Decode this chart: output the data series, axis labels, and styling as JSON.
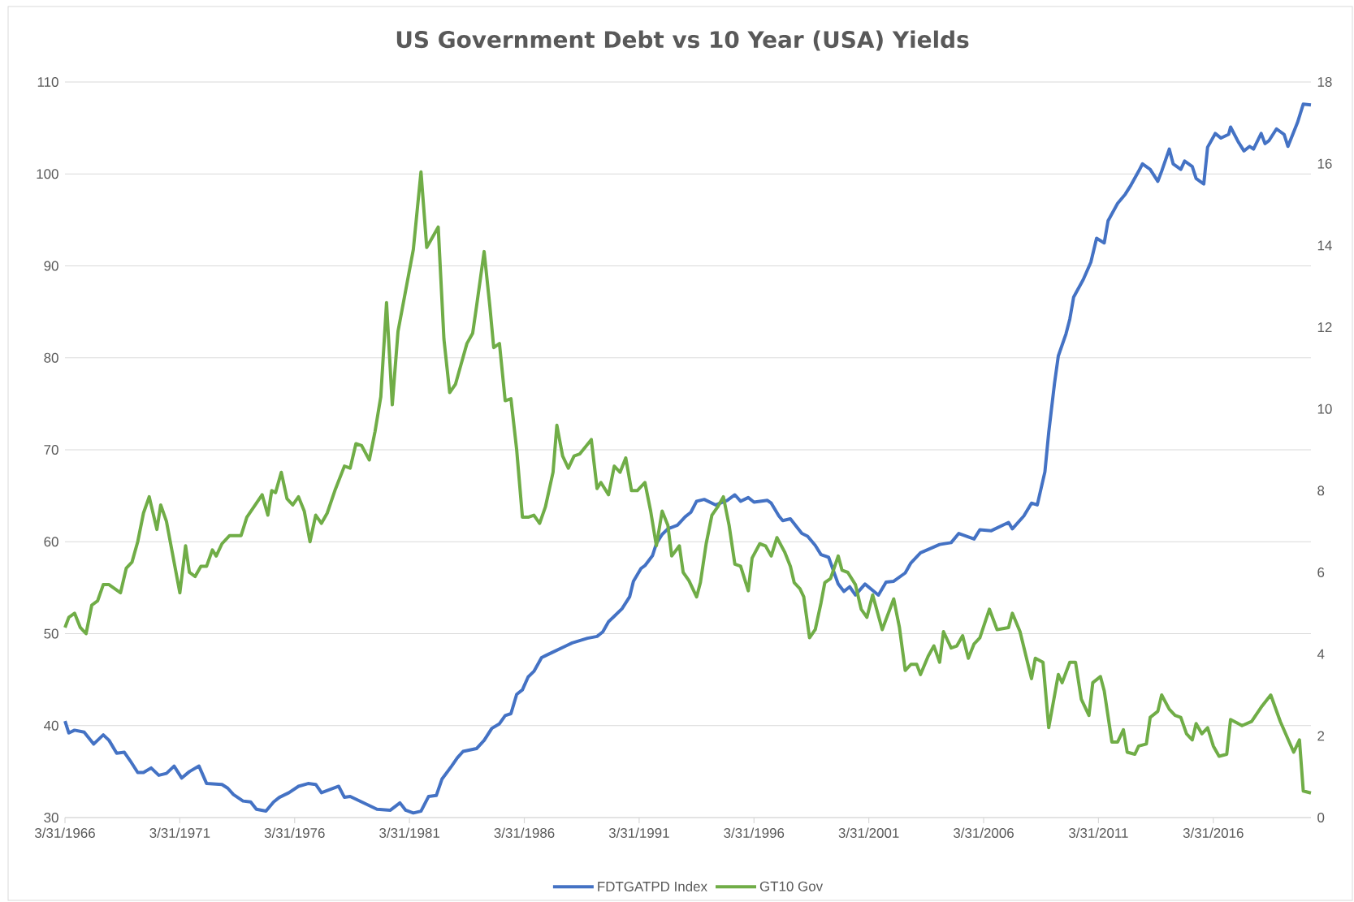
{
  "chart_data": {
    "type": "line",
    "title": "US Government Debt vs 10 Year (USA) Yields",
    "xlim": [
      "1966-03-31",
      "2020-07"
    ],
    "xticks": [
      {
        "value": "1966-03-31",
        "label": "3/31/1966"
      },
      {
        "value": "1971-03-31",
        "label": "3/31/1971"
      },
      {
        "value": "1976-03-31",
        "label": "3/31/1976"
      },
      {
        "value": "1981-03-31",
        "label": "3/31/1981"
      },
      {
        "value": "1986-03-31",
        "label": "3/31/1986"
      },
      {
        "value": "1991-03-31",
        "label": "3/31/1991"
      },
      {
        "value": "1996-03-31",
        "label": "3/31/1996"
      },
      {
        "value": "2001-03-31",
        "label": "3/31/2001"
      },
      {
        "value": "2006-03-31",
        "label": "3/31/2006"
      },
      {
        "value": "2011-03-31",
        "label": "3/31/2011"
      },
      {
        "value": "2016-03-31",
        "label": "3/31/2016"
      }
    ],
    "ylim": [
      30,
      110
    ],
    "yticks": [
      30,
      40,
      50,
      60,
      70,
      80,
      90,
      100,
      110
    ],
    "y2lim": [
      0,
      18
    ],
    "y2ticks": [
      0,
      2,
      4,
      6,
      8,
      10,
      12,
      14,
      16,
      18
    ],
    "grid": "y",
    "legend": "bottom",
    "series": [
      {
        "name": "FDTGATPD Index",
        "color": "#4472c4",
        "axis": "y",
        "x": [
          "1966-04",
          "1966-06",
          "1966-09",
          "1967-02",
          "1967-07",
          "1967-12",
          "1968-03",
          "1968-07",
          "1968-11",
          "1969-02",
          "1969-06",
          "1969-09",
          "1970-01",
          "1970-05",
          "1970-09",
          "1971-01",
          "1971-05",
          "1971-09",
          "1972-02",
          "1972-06",
          "1973-02",
          "1973-05",
          "1973-08",
          "1974-01",
          "1974-05",
          "1974-08",
          "1975-01",
          "1975-05",
          "1975-08",
          "1976-01",
          "1976-06",
          "1976-11",
          "1977-03",
          "1977-06",
          "1978-03",
          "1978-06",
          "1978-09",
          "1979-07",
          "1979-11",
          "1980-06",
          "1980-11",
          "1981-02",
          "1981-06",
          "1981-10",
          "1982-02",
          "1982-06",
          "1982-09",
          "1983-02",
          "1983-05",
          "1983-08",
          "1984-03",
          "1984-07",
          "1984-11",
          "1985-03",
          "1985-06",
          "1985-09",
          "1985-12",
          "1986-03",
          "1986-06",
          "1986-09",
          "1987-01",
          "1987-03",
          "1987-07",
          "1988-02",
          "1988-05",
          "1989-01",
          "1989-06",
          "1989-09",
          "1989-12",
          "1990-03",
          "1990-07",
          "1990-11",
          "1991-01",
          "1991-05",
          "1991-07",
          "1991-11",
          "1992-01",
          "1992-04",
          "1992-07",
          "1992-12",
          "1993-04",
          "1993-07",
          "1993-10",
          "1994-02",
          "1994-08",
          "1995-02",
          "1995-06",
          "1995-09",
          "1996-01",
          "1996-04",
          "1996-11",
          "1997-01",
          "1997-05",
          "1997-07",
          "1997-11",
          "1998-05",
          "1998-08",
          "1998-12",
          "1999-03",
          "1999-07",
          "1999-12",
          "2000-03",
          "2000-06",
          "2000-09",
          "2001-02",
          "2001-09",
          "2002-01",
          "2002-05",
          "2002-11",
          "2003-02",
          "2003-07",
          "2004-05",
          "2004-11",
          "2005-03",
          "2005-11",
          "2006-02",
          "2006-08",
          "2007-05",
          "2007-07",
          "2008-01",
          "2008-05",
          "2008-08",
          "2008-12",
          "2009-02",
          "2009-05",
          "2009-07",
          "2009-11",
          "2010-01",
          "2010-03",
          "2010-08",
          "2010-12",
          "2011-03",
          "2011-07",
          "2011-09",
          "2012-02",
          "2012-06",
          "2012-09",
          "2013-01",
          "2013-03",
          "2013-07",
          "2013-11",
          "2014-01",
          "2014-05",
          "2014-07",
          "2014-11",
          "2015-01",
          "2015-05",
          "2015-07",
          "2015-11",
          "2016-01",
          "2016-05",
          "2016-08",
          "2016-12",
          "2017-01",
          "2017-05",
          "2017-08",
          "2017-11",
          "2018-01",
          "2018-05",
          "2018-07",
          "2018-09",
          "2019-01",
          "2019-05",
          "2019-07",
          "2019-12",
          "2020-03",
          "2020-07"
        ],
        "values": [
          40.5,
          39.2,
          39.5,
          39.3,
          38.0,
          39.0,
          38.4,
          37.0,
          37.1,
          36.2,
          34.9,
          34.9,
          35.4,
          34.6,
          34.8,
          35.6,
          34.3,
          35.0,
          35.6,
          33.7,
          33.6,
          33.2,
          32.5,
          31.8,
          31.7,
          30.9,
          30.7,
          31.7,
          32.2,
          32.7,
          33.4,
          33.7,
          33.6,
          32.7,
          33.4,
          32.2,
          32.3,
          31.3,
          30.9,
          30.8,
          31.6,
          30.8,
          30.5,
          30.7,
          32.3,
          32.4,
          34.2,
          35.6,
          36.5,
          37.2,
          37.5,
          38.4,
          39.7,
          40.2,
          41.1,
          41.3,
          43.4,
          43.9,
          45.3,
          45.9,
          47.4,
          47.6,
          48.0,
          48.7,
          49.0,
          49.5,
          49.7,
          50.2,
          51.3,
          51.9,
          52.7,
          54.0,
          55.7,
          57.1,
          57.4,
          58.5,
          59.8,
          60.8,
          61.4,
          61.8,
          62.7,
          63.2,
          64.4,
          64.6,
          64.0,
          64.5,
          65.1,
          64.4,
          64.8,
          64.3,
          64.5,
          64.2,
          62.8,
          62.3,
          62.5,
          60.9,
          60.6,
          59.6,
          58.6,
          58.3,
          55.4,
          54.6,
          55.1,
          54.2,
          55.4,
          54.2,
          55.6,
          55.7,
          56.6,
          57.7,
          58.8,
          59.7,
          59.9,
          60.9,
          60.3,
          61.3,
          61.2,
          62.1,
          61.4,
          62.8,
          64.2,
          64.0,
          67.6,
          71.9,
          77.2,
          80.2,
          82.6,
          84.2,
          86.6,
          88.5,
          90.4,
          93.0,
          92.5,
          94.9,
          96.8,
          97.8,
          98.8,
          100.3,
          101.1,
          100.5,
          99.2,
          100.3,
          102.7,
          101.1,
          100.5,
          101.4,
          100.8,
          99.5,
          98.9,
          102.9,
          104.4,
          103.9,
          104.3,
          105.1,
          103.5,
          102.5,
          103.0,
          102.7,
          104.4,
          103.3,
          103.6,
          104.9,
          104.3,
          103.0,
          105.6,
          107.6,
          107.5
        ]
      },
      {
        "name": "GT10 Gov",
        "color": "#70ad47",
        "axis": "y2",
        "x": [
          "1966-04",
          "1966-06",
          "1966-09",
          "1966-12",
          "1967-03",
          "1967-06",
          "1967-09",
          "1967-12",
          "1968-03",
          "1968-09",
          "1968-12",
          "1969-03",
          "1969-06",
          "1969-09",
          "1969-12",
          "1970-04",
          "1970-06",
          "1970-09",
          "1970-12",
          "1971-04",
          "1971-07",
          "1971-09",
          "1971-12",
          "1972-03",
          "1972-06",
          "1972-09",
          "1972-11",
          "1973-02",
          "1973-06",
          "1973-12",
          "1974-03",
          "1974-11",
          "1975-02",
          "1975-04",
          "1975-06",
          "1975-09",
          "1975-12",
          "1976-03",
          "1976-06",
          "1976-09",
          "1976-12",
          "1977-03",
          "1977-06",
          "1977-09",
          "1978-01",
          "1978-06",
          "1978-09",
          "1978-12",
          "1979-03",
          "1979-07",
          "1979-10",
          "1980-01",
          "1980-04",
          "1980-07",
          "1980-10",
          "1981-06",
          "1981-10",
          "1982-01",
          "1982-07",
          "1982-10",
          "1983-01",
          "1983-04",
          "1983-07",
          "1983-10",
          "1984-01",
          "1984-03",
          "1984-07",
          "1984-10",
          "1984-12",
          "1985-03",
          "1985-06",
          "1985-09",
          "1985-12",
          "1986-03",
          "1986-06",
          "1986-09",
          "1986-12",
          "1987-03",
          "1987-07",
          "1987-09",
          "1987-12",
          "1988-03",
          "1988-06",
          "1988-09",
          "1989-03",
          "1989-06",
          "1989-08",
          "1989-12",
          "1990-03",
          "1990-06",
          "1990-09",
          "1990-12",
          "1991-03",
          "1991-07",
          "1991-10",
          "1992-01",
          "1992-04",
          "1992-07",
          "1992-09",
          "1993-01",
          "1993-03",
          "1993-06",
          "1993-10",
          "1993-12",
          "1994-03",
          "1994-06",
          "1994-09",
          "1994-12",
          "1995-03",
          "1995-06",
          "1995-09",
          "1996-01",
          "1996-03",
          "1996-07",
          "1996-10",
          "1997-01",
          "1997-04",
          "1997-08",
          "1997-11",
          "1998-01",
          "1998-04",
          "1998-06",
          "1998-09",
          "1998-12",
          "1999-03",
          "1999-05",
          "1999-08",
          "1999-12",
          "2000-02",
          "2000-05",
          "2000-09",
          "2000-12",
          "2001-03",
          "2001-06",
          "2001-11",
          "2002-05",
          "2002-08",
          "2002-11",
          "2003-02",
          "2003-05",
          "2003-07",
          "2003-11",
          "2004-02",
          "2004-05",
          "2004-07",
          "2004-11",
          "2005-02",
          "2005-05",
          "2005-08",
          "2005-11",
          "2006-02",
          "2006-07",
          "2006-11",
          "2007-05",
          "2007-07",
          "2007-11",
          "2008-05",
          "2008-07",
          "2008-11",
          "2009-02",
          "2009-07",
          "2009-09",
          "2010-01",
          "2010-04",
          "2010-07",
          "2010-11",
          "2011-01",
          "2011-05",
          "2011-07",
          "2011-11",
          "2012-02",
          "2012-05",
          "2012-07",
          "2012-11",
          "2013-01",
          "2013-05",
          "2013-07",
          "2013-11",
          "2014-01",
          "2014-05",
          "2014-08",
          "2014-11",
          "2015-02",
          "2015-05",
          "2015-07",
          "2015-10",
          "2016-01",
          "2016-04",
          "2016-07",
          "2016-11",
          "2017-01",
          "2017-07",
          "2017-12",
          "2018-05",
          "2018-10",
          "2019-03",
          "2019-10",
          "2020-01",
          "2020-03",
          "2020-07"
        ],
        "values": [
          4.65,
          4.9,
          5.0,
          4.65,
          4.5,
          5.2,
          5.3,
          5.7,
          5.7,
          5.5,
          6.1,
          6.25,
          6.75,
          7.45,
          7.85,
          7.05,
          7.65,
          7.25,
          6.5,
          5.5,
          6.65,
          6.0,
          5.9,
          6.15,
          6.15,
          6.55,
          6.4,
          6.7,
          6.9,
          6.9,
          7.35,
          7.9,
          7.4,
          8.0,
          7.95,
          8.45,
          7.8,
          7.65,
          7.85,
          7.5,
          6.75,
          7.4,
          7.2,
          7.45,
          8.0,
          8.6,
          8.55,
          9.15,
          9.1,
          8.75,
          9.45,
          10.3,
          12.6,
          10.1,
          11.9,
          13.9,
          15.8,
          13.95,
          14.45,
          11.7,
          10.4,
          10.6,
          11.1,
          11.6,
          11.85,
          12.5,
          13.85,
          12.5,
          11.5,
          11.6,
          10.2,
          10.25,
          9.0,
          7.35,
          7.35,
          7.4,
          7.2,
          7.6,
          8.45,
          9.6,
          8.85,
          8.55,
          8.85,
          8.9,
          9.25,
          8.05,
          8.2,
          7.9,
          8.6,
          8.45,
          8.8,
          8.0,
          8.0,
          8.2,
          7.5,
          6.65,
          7.5,
          7.15,
          6.4,
          6.65,
          6.0,
          5.8,
          5.4,
          5.75,
          6.7,
          7.4,
          7.6,
          7.85,
          7.15,
          6.2,
          6.15,
          5.55,
          6.35,
          6.7,
          6.65,
          6.4,
          6.85,
          6.5,
          6.15,
          5.75,
          5.6,
          5.4,
          4.4,
          4.6,
          5.25,
          5.75,
          5.85,
          6.4,
          6.05,
          6.0,
          5.7,
          5.1,
          4.9,
          5.45,
          4.6,
          5.35,
          4.65,
          3.6,
          3.75,
          3.75,
          3.5,
          3.95,
          4.2,
          3.8,
          4.55,
          4.15,
          4.2,
          4.45,
          3.9,
          4.25,
          4.4,
          5.1,
          4.6,
          4.65,
          5.0,
          4.55,
          3.4,
          3.9,
          3.8,
          2.2,
          3.5,
          3.3,
          3.8,
          3.8,
          2.9,
          2.5,
          3.3,
          3.45,
          3.1,
          1.85,
          1.85,
          2.15,
          1.6,
          1.55,
          1.75,
          1.8,
          2.45,
          2.6,
          3.0,
          2.65,
          2.5,
          2.45,
          2.05,
          1.9,
          2.3,
          2.05,
          2.2,
          1.75,
          1.5,
          1.55,
          2.4,
          2.25,
          2.35,
          2.7,
          3.0,
          2.35,
          1.6,
          1.9,
          0.65,
          0.6
        ]
      }
    ]
  }
}
